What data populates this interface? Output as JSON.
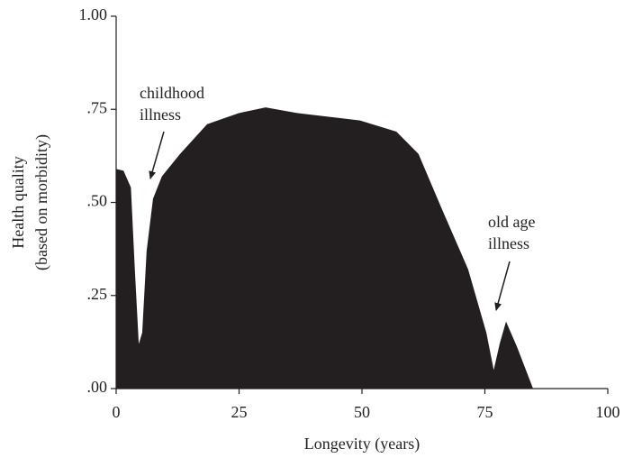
{
  "chart_data": {
    "type": "area",
    "x_label": "Longevity (years)",
    "y_label": [
      "Health quality",
      "(based on morbidity)"
    ],
    "x": [
      0,
      1.5,
      3,
      3.8,
      4.6,
      5.3,
      6.2,
      7.5,
      9.3,
      13,
      18.5,
      25,
      30.4,
      36.8,
      49.6,
      57,
      61.5,
      66,
      71.6,
      75.3,
      76.8,
      78,
      79.3,
      81.6,
      84.8
    ],
    "y": [
      0.59,
      0.585,
      0.54,
      0.32,
      0.12,
      0.15,
      0.37,
      0.51,
      0.57,
      0.63,
      0.71,
      0.74,
      0.755,
      0.74,
      0.72,
      0.69,
      0.63,
      0.49,
      0.32,
      0.15,
      0.05,
      0.12,
      0.18,
      0.11,
      0
    ],
    "color": "#231f20",
    "xlim": [
      0,
      100
    ],
    "xticks": [
      0,
      25,
      50,
      75,
      100
    ],
    "ylim": [
      0,
      1
    ],
    "yticks": [
      {
        "value": 0,
        "label": ".00"
      },
      {
        "value": 0.25,
        "label": ".25"
      },
      {
        "value": 0.5,
        "label": ".50"
      },
      {
        "value": 0.75,
        "label": ".75"
      },
      {
        "value": 1,
        "label": "1.00"
      }
    ],
    "grid": false,
    "annotations": [
      {
        "lines": [
          "childhood",
          "illness"
        ]
      },
      {
        "lines": [
          "old age",
          "illness"
        ]
      }
    ]
  }
}
